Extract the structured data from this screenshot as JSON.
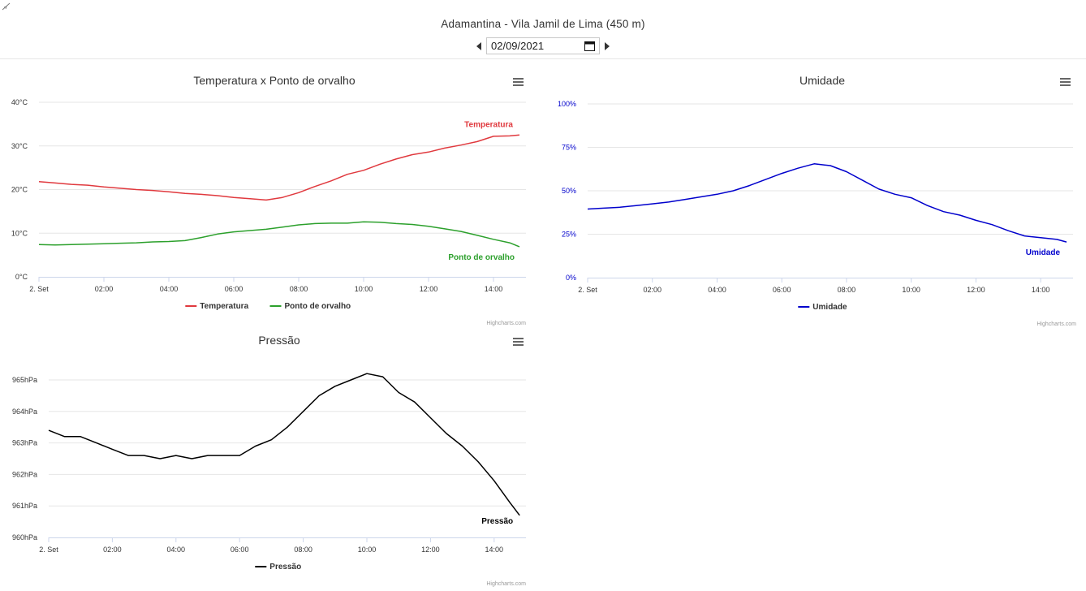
{
  "header": {
    "title": "Adamantina - Vila Jamil de Lima (450 m)",
    "date_value": "02/09/2021"
  },
  "credits": "Highcharts.com",
  "colors": {
    "temperature": "#e0393e",
    "dew_point": "#2ca02c",
    "humidity": "#0000cc",
    "pressure": "#000000"
  },
  "chart_data": [
    {
      "type": "line",
      "title": "Temperatura x Ponto de orvalho",
      "x_tick_labels": [
        "2. Set",
        "02:00",
        "04:00",
        "06:00",
        "08:00",
        "10:00",
        "12:00",
        "14:00"
      ],
      "x_range_hours": [
        0,
        15
      ],
      "y_tick_labels": [
        "0°C",
        "10°C",
        "20°C",
        "30°C",
        "40°C"
      ],
      "ylim": [
        0,
        40
      ],
      "legend_position": "bottom-center",
      "grid": true,
      "series": [
        {
          "name": "Temperatura",
          "color": "#e0393e",
          "x": [
            0,
            0.5,
            1,
            1.5,
            2,
            2.5,
            3,
            3.5,
            4,
            4.5,
            5,
            5.5,
            6,
            6.5,
            7,
            7.5,
            8,
            8.5,
            9,
            9.5,
            10,
            10.5,
            11,
            11.5,
            12,
            12.5,
            13,
            13.5,
            14,
            14.5,
            14.8
          ],
          "values": [
            21.8,
            21.5,
            21.2,
            21.0,
            20.6,
            20.3,
            20.0,
            19.8,
            19.5,
            19.1,
            18.9,
            18.6,
            18.2,
            17.9,
            17.6,
            18.2,
            19.3,
            20.7,
            22.0,
            23.5,
            24.4,
            25.8,
            27.0,
            28.0,
            28.6,
            29.5,
            30.2,
            31.0,
            32.2,
            32.3,
            32.5
          ]
        },
        {
          "name": "Ponto de orvalho",
          "color": "#2ca02c",
          "x": [
            0,
            0.5,
            1,
            1.5,
            2,
            2.5,
            3,
            3.5,
            4,
            4.5,
            5,
            5.5,
            6,
            6.5,
            7,
            7.5,
            8,
            8.5,
            9,
            9.5,
            10,
            10.5,
            11,
            11.5,
            12,
            12.5,
            13,
            13.5,
            14,
            14.5,
            14.8
          ],
          "values": [
            7.4,
            7.3,
            7.4,
            7.5,
            7.6,
            7.7,
            7.8,
            8.0,
            8.1,
            8.3,
            9.0,
            9.8,
            10.3,
            10.6,
            10.9,
            11.4,
            11.9,
            12.2,
            12.3,
            12.3,
            12.6,
            12.5,
            12.2,
            12.0,
            11.6,
            11.0,
            10.4,
            9.5,
            8.6,
            7.8,
            6.9
          ]
        }
      ]
    },
    {
      "type": "line",
      "title": "Umidade",
      "x_tick_labels": [
        "2. Set",
        "02:00",
        "04:00",
        "06:00",
        "08:00",
        "10:00",
        "12:00",
        "14:00"
      ],
      "x_range_hours": [
        0,
        15
      ],
      "y_tick_labels": [
        "0%",
        "25%",
        "50%",
        "75%",
        "100%"
      ],
      "ylim": [
        0,
        100
      ],
      "legend_position": "bottom-center",
      "grid": true,
      "series": [
        {
          "name": "Umidade",
          "color": "#0000cc",
          "x": [
            0,
            0.5,
            1,
            1.5,
            2,
            2.5,
            3,
            3.5,
            4,
            4.5,
            5,
            5.5,
            6,
            6.5,
            7,
            7.5,
            8,
            8.5,
            9,
            9.5,
            10,
            10.5,
            11,
            11.5,
            12,
            12.5,
            13,
            13.5,
            14,
            14.5,
            14.8
          ],
          "values": [
            39.5,
            40,
            40.5,
            41.5,
            42.5,
            43.5,
            45,
            46.5,
            48,
            50,
            53,
            56.5,
            60,
            63,
            65.5,
            64.5,
            61,
            56,
            51,
            48,
            46,
            41.5,
            38,
            36,
            33,
            30.5,
            27,
            24,
            23,
            22,
            20.5
          ]
        }
      ]
    },
    {
      "type": "line",
      "title": "Pressão",
      "x_tick_labels": [
        "2. Set",
        "02:00",
        "04:00",
        "06:00",
        "08:00",
        "10:00",
        "12:00",
        "14:00"
      ],
      "x_range_hours": [
        0,
        15
      ],
      "y_tick_labels": [
        "960hPa",
        "961hPa",
        "962hPa",
        "963hPa",
        "964hPa",
        "965hPa"
      ],
      "ylim": [
        960,
        965
      ],
      "legend_position": "bottom-center",
      "grid": true,
      "series": [
        {
          "name": "Pressão",
          "color": "#000000",
          "x": [
            0,
            0.5,
            1,
            1.5,
            2,
            2.5,
            3,
            3.5,
            4,
            4.5,
            5,
            5.5,
            6,
            6.5,
            7,
            7.5,
            8,
            8.5,
            9,
            9.5,
            10,
            10.5,
            11,
            11.5,
            12,
            12.5,
            13,
            13.5,
            14,
            14.5,
            14.8
          ],
          "values": [
            963.4,
            963.2,
            963.2,
            963.0,
            962.8,
            962.6,
            962.6,
            962.5,
            962.6,
            962.5,
            962.6,
            962.6,
            962.6,
            962.9,
            963.1,
            963.5,
            964.0,
            964.5,
            964.8,
            965.0,
            965.2,
            965.1,
            964.6,
            964.3,
            963.8,
            963.3,
            962.9,
            962.4,
            961.8,
            961.1,
            960.7
          ]
        }
      ]
    }
  ]
}
